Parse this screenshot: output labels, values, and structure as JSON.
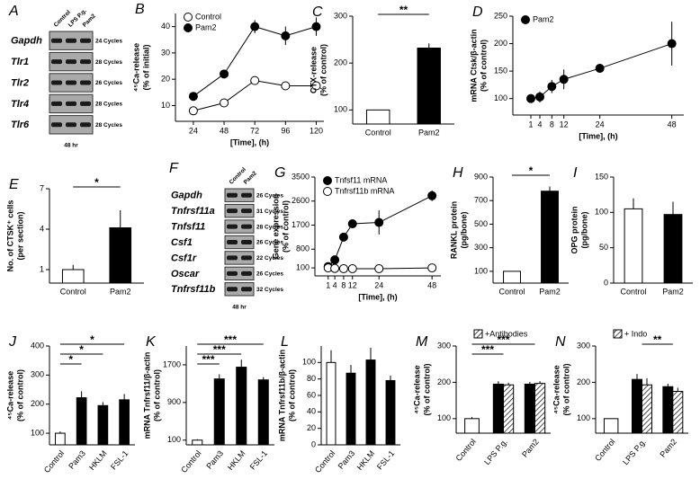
{
  "chart_data": [
    {
      "type": "gel",
      "panel": "A",
      "columns": [
        "Control",
        "LPS P.g.",
        "Pam2"
      ],
      "genes": [
        "Gapdh",
        "Tlr1",
        "Tlr2",
        "Tlr4",
        "Tlr6"
      ],
      "cycles": [
        "24 Cycles",
        "28 Cycles",
        "26 Cycles",
        "28 Cycles",
        "28 Cycles"
      ],
      "footer": "48 hr"
    },
    {
      "type": "line",
      "panel": "B",
      "ylabel": [
        "⁴⁵Ca-release",
        "(% of initial)"
      ],
      "xlabel": "[Time], (h)",
      "x": [
        24,
        48,
        72,
        96,
        120
      ],
      "xlim": [
        10,
        126
      ],
      "xticks": [
        24,
        48,
        72,
        96,
        120
      ],
      "ylim": [
        4,
        45
      ],
      "yticks": [
        10,
        20,
        30,
        40
      ],
      "legend": "upper left",
      "series": [
        {
          "name": "Control",
          "color": "#ffffff",
          "values": [
            8,
            11,
            19.5,
            17.5,
            17.5
          ],
          "errors": [
            0.5,
            1,
            1,
            1,
            1
          ]
        },
        {
          "name": "Pam2",
          "color": "#000000",
          "values": [
            13.5,
            22,
            40,
            36.5,
            40
          ],
          "errors": [
            1,
            1,
            2.5,
            3.5,
            3.5
          ]
        }
      ]
    },
    {
      "type": "bar",
      "panel": "C",
      "ylabel": [
        "CTX-release",
        "(% of control)"
      ],
      "categories": [
        "Control",
        "Pam2"
      ],
      "ylim": [
        70,
        300
      ],
      "yticks": [
        100,
        200,
        300
      ],
      "series": [
        {
          "colors": [
            "#ffffff",
            "#000000"
          ],
          "values": [
            100,
            232
          ],
          "errors": [
            null,
            10
          ]
        }
      ],
      "annotations": [
        {
          "text": "**",
          "from": "Control",
          "to": "Pam2"
        }
      ]
    },
    {
      "type": "line",
      "panel": "D",
      "ylabel": [
        "mRNA Ctsk/β-actin",
        "(% of control)"
      ],
      "xlabel": "[Time], (h)",
      "x": [
        1,
        4,
        8,
        12,
        24,
        48
      ],
      "xlim": [
        -5,
        52
      ],
      "xticks": [
        1,
        4,
        8,
        12,
        24,
        48
      ],
      "ylim": [
        70,
        250
      ],
      "yticks": [
        100,
        150,
        200,
        250
      ],
      "legend": "upper left",
      "series": [
        {
          "name": "Pam2",
          "color": "#000000",
          "values": [
            100,
            103,
            122,
            135,
            155,
            200
          ],
          "errors": [
            5,
            10,
            12,
            18,
            8,
            40
          ]
        }
      ]
    },
    {
      "type": "bar",
      "panel": "E",
      "ylabel": [
        "No. of CTSK⁺ cells",
        "(per section)"
      ],
      "categories": [
        "Control",
        "Pam2"
      ],
      "ylim": [
        0,
        7
      ],
      "yticks": [
        1,
        4,
        7
      ],
      "series": [
        {
          "colors": [
            "#ffffff",
            "#000000"
          ],
          "values": [
            1.0,
            4.1
          ],
          "errors": [
            0.35,
            1.3
          ]
        }
      ],
      "annotations": [
        {
          "text": "*",
          "from": "Control",
          "to": "Pam2"
        }
      ]
    },
    {
      "type": "gel",
      "panel": "F",
      "columns": [
        "Control",
        "Pam2"
      ],
      "genes": [
        "Gapdh",
        "Tnfrsf11a",
        "Tnfsf11",
        "Csf1",
        "Csf1r",
        "Oscar",
        "Tnfrsf11b"
      ],
      "cycles": [
        "26 Cycles",
        "31 Cycles",
        "28 Cycles",
        "26 Cycles",
        "22 Cycles",
        "26 Cycles",
        "32 Cycles"
      ],
      "footer": "48 hr"
    },
    {
      "type": "line",
      "panel": "G",
      "ylabel": [
        "Gene expression",
        "(% of control)"
      ],
      "xlabel": "[Time], (h)",
      "x": [
        1,
        4,
        8,
        12,
        24,
        48
      ],
      "xlim": [
        -5,
        52
      ],
      "xticks": [
        1,
        4,
        8,
        12,
        24,
        48
      ],
      "ylim": [
        -200,
        3500
      ],
      "yticks": [
        100,
        800,
        1700,
        2600,
        3500
      ],
      "legend": "upper left",
      "series": [
        {
          "name": "Tnfsf11 mRNA",
          "color": "#000000",
          "values": [
            150,
            400,
            1250,
            1750,
            1800,
            2800
          ],
          "errors": [
            30,
            80,
            120,
            100,
            450,
            200
          ]
        },
        {
          "name": "Tnfrsf11b mRNA",
          "color": "#ffffff",
          "values": [
            100,
            80,
            70,
            70,
            70,
            100
          ],
          "errors": [
            15,
            10,
            10,
            10,
            10,
            15
          ]
        }
      ]
    },
    {
      "type": "bar",
      "panel": "H",
      "ylabel": [
        "RANKL protein",
        "(pg/bone)"
      ],
      "categories": [
        "Control",
        "Pam2"
      ],
      "ylim": [
        0,
        900
      ],
      "yticks": [
        100,
        300,
        500,
        700,
        900
      ],
      "series": [
        {
          "colors": [
            "#ffffff",
            "#000000"
          ],
          "values": [
            100,
            780
          ],
          "errors": [
            null,
            40
          ]
        }
      ],
      "annotations": [
        {
          "text": "*",
          "from": "Control",
          "to": "Pam2"
        }
      ]
    },
    {
      "type": "bar",
      "panel": "I",
      "ylabel": [
        "OPG protein",
        "(pg/bone)"
      ],
      "categories": [
        "Control",
        "Pam2"
      ],
      "ylim": [
        0,
        150
      ],
      "yticks": [
        0,
        50,
        100,
        150
      ],
      "series": [
        {
          "colors": [
            "#ffffff",
            "#000000"
          ],
          "values": [
            105,
            97
          ],
          "errors": [
            15,
            18
          ]
        }
      ]
    },
    {
      "type": "bar",
      "panel": "J",
      "ylabel": [
        "⁴⁵Ca-release",
        "(% of control)"
      ],
      "categories": [
        "Control",
        "Pam3",
        "HKLM",
        "FSL-1"
      ],
      "ylim": [
        60,
        400
      ],
      "yticks": [
        100,
        200,
        300,
        400
      ],
      "series": [
        {
          "colors": [
            "#ffffff",
            "#000000",
            "#000000",
            "#000000"
          ],
          "values": [
            100,
            222,
            195,
            215
          ],
          "errors": [
            6,
            22,
            12,
            20
          ]
        }
      ],
      "annotations": [
        {
          "text": "*",
          "from": "Control",
          "to": "Pam3"
        },
        {
          "text": "*",
          "from": "Control",
          "to": "HKLM"
        },
        {
          "text": "*",
          "from": "Control",
          "to": "FSL-1"
        }
      ]
    },
    {
      "type": "bar",
      "panel": "K",
      "ylabel": [
        "mRNA Tnfrsf11/β-actin",
        "(% of control)"
      ],
      "categories": [
        "Control",
        "Pam3",
        "HKLM",
        "FSL-1"
      ],
      "ylim": [
        0,
        2100
      ],
      "yticks": [
        100,
        900,
        1700
      ],
      "series": [
        {
          "colors": [
            "#ffffff",
            "#000000",
            "#000000",
            "#000000"
          ],
          "values": [
            100,
            1400,
            1650,
            1380
          ],
          "errors": [
            20,
            100,
            160,
            60
          ]
        }
      ],
      "annotations": [
        {
          "text": "***",
          "from": "Control",
          "to": "Pam3"
        },
        {
          "text": "***",
          "from": "Control",
          "to": "HKLM"
        },
        {
          "text": "***",
          "from": "Control",
          "to": "FSL-1"
        }
      ]
    },
    {
      "type": "bar",
      "panel": "L",
      "ylabel": [
        "mRNA Tnfrsf11b/β-actin",
        "(% of control)"
      ],
      "categories": [
        "Control",
        "Pam3",
        "HKLM",
        "FSL-1"
      ],
      "ylim": [
        0,
        120
      ],
      "yticks": [
        0,
        20,
        40,
        60,
        80,
        100
      ],
      "series": [
        {
          "colors": [
            "#ffffff",
            "#000000",
            "#000000",
            "#000000"
          ],
          "values": [
            100,
            87,
            103,
            78
          ],
          "errors": [
            15,
            10,
            15,
            6
          ]
        }
      ]
    },
    {
      "type": "bar",
      "panel": "M",
      "ylabel": [
        "⁴⁵Ca-release",
        "(% of control)"
      ],
      "categories": [
        "Control",
        "LPS P.g.",
        "Pam2"
      ],
      "ylim": [
        60,
        300
      ],
      "yticks": [
        100,
        200,
        300
      ],
      "series": [
        {
          "colors": [
            "#ffffff",
            "#000000",
            "#000000"
          ],
          "values": [
            100,
            195,
            195
          ],
          "errors": [
            5,
            8,
            6
          ]
        },
        {
          "name": "+Antibodies",
          "color": "#ffffff",
          "pattern": "hatch",
          "values": [
            null,
            193,
            197
          ],
          "errors": [
            null,
            6,
            6
          ]
        }
      ],
      "annotations": [
        {
          "text": "***",
          "from": "Control",
          "to": "LPS P.g."
        },
        {
          "text": "***",
          "from": "Control",
          "to": "Pam2"
        }
      ]
    },
    {
      "type": "bar",
      "panel": "N",
      "ylabel": [
        "⁴⁵Ca-release",
        "(% of control)"
      ],
      "categories": [
        "Control",
        "LPS P.g.",
        "Pam2"
      ],
      "ylim": [
        60,
        300
      ],
      "yticks": [
        100,
        200,
        300
      ],
      "series": [
        {
          "colors": [
            "#ffffff",
            "#000000",
            "#000000"
          ],
          "values": [
            100,
            208,
            188
          ],
          "errors": [
            null,
            15,
            8
          ]
        },
        {
          "name": "+ Indo",
          "color": "#ffffff",
          "pattern": "hatch",
          "values": [
            null,
            193,
            175
          ],
          "errors": [
            null,
            18,
            10
          ]
        }
      ],
      "annotations": [
        {
          "text": "**",
          "from": "LPS P.g.",
          "to": "Pam2"
        }
      ]
    }
  ]
}
